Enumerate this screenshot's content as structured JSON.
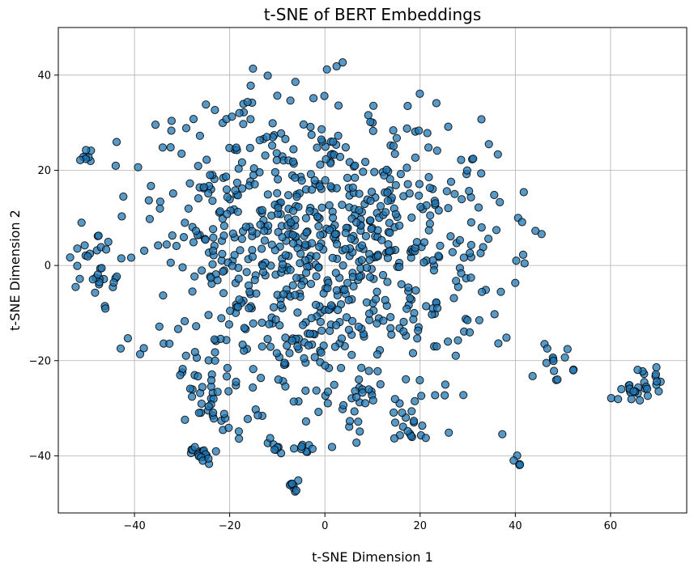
{
  "chart_data": {
    "type": "scatter",
    "title": "t-SNE of BERT Embeddings",
    "xlabel": "t-SNE Dimension 1",
    "ylabel": "t-SNE Dimension 2",
    "xlim": [
      -56,
      76
    ],
    "ylim": [
      -52,
      50
    ],
    "xticks": [
      -40,
      -20,
      0,
      20,
      40,
      60
    ],
    "yticks": [
      -40,
      -20,
      0,
      20,
      40
    ],
    "xtick_labels": [
      "−40",
      "−20",
      "0",
      "20",
      "40",
      "60"
    ],
    "ytick_labels": [
      "−40",
      "−20",
      "0",
      "20",
      "40"
    ],
    "grid": true,
    "legend": "none",
    "marker_fill": "#1f77b4",
    "marker_opacity": 0.75,
    "marker_edge": "#000000",
    "n_points": 1000,
    "clusters": [
      {
        "cx": -2,
        "cy": 4,
        "sx": 24,
        "sy": 18,
        "n": 780
      },
      {
        "cx": -50,
        "cy": 23,
        "sx": 0.6,
        "sy": 1.0,
        "n": 8
      },
      {
        "cx": 66,
        "cy": -25.5,
        "sx": 2.4,
        "sy": 2.0,
        "n": 30
      },
      {
        "cx": -26,
        "cy": -39.5,
        "sx": 1.5,
        "sy": 1.0,
        "n": 18
      },
      {
        "cx": -7,
        "cy": -46,
        "sx": 0.8,
        "sy": 0.7,
        "n": 10
      },
      {
        "cx": 40.5,
        "cy": -41.5,
        "sx": 0.5,
        "sy": 0.5,
        "n": 5
      },
      {
        "cx": -10,
        "cy": -38.5,
        "sx": 1.5,
        "sy": 0.8,
        "n": 8
      },
      {
        "cx": -4,
        "cy": -38,
        "sx": 1.5,
        "sy": 0.8,
        "n": 8
      },
      {
        "cx": 18,
        "cy": -35,
        "sx": 2.5,
        "sy": 1.5,
        "n": 12
      },
      {
        "cx": 48,
        "cy": -20,
        "sx": 2.0,
        "sy": 3.0,
        "n": 14
      },
      {
        "cx": -48,
        "cy": 0,
        "sx": 3.0,
        "sy": 6.0,
        "n": 30
      },
      {
        "cx": 6,
        "cy": -30,
        "sx": 10,
        "sy": 4,
        "n": 40
      },
      {
        "cx": -22,
        "cy": -28,
        "sx": 4,
        "sy": 4,
        "n": 37
      }
    ]
  }
}
